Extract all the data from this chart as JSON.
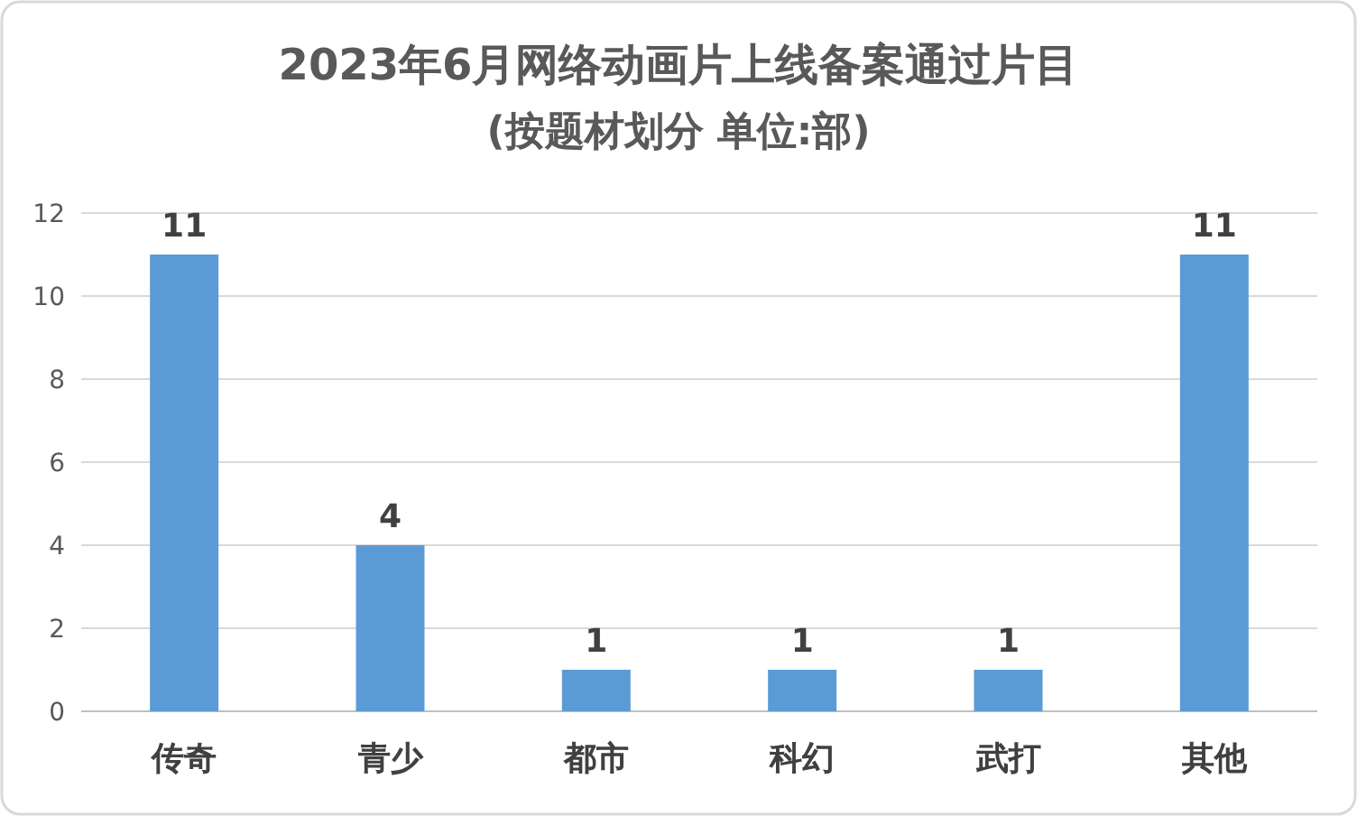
{
  "chart_data": {
    "type": "bar",
    "title": "2023年6月网络动画片上线备案通过片目",
    "subtitle": "(按题材划分 单位:部)",
    "categories": [
      "传奇",
      "青少",
      "都市",
      "科幻",
      "武打",
      "其他"
    ],
    "values": [
      11,
      4,
      1,
      1,
      1,
      11
    ],
    "color": "#5b9bd5",
    "ylim": [
      0,
      12
    ],
    "yticks": [
      0,
      2,
      4,
      6,
      8,
      10,
      12
    ],
    "grid": "y",
    "data_labels": true
  }
}
